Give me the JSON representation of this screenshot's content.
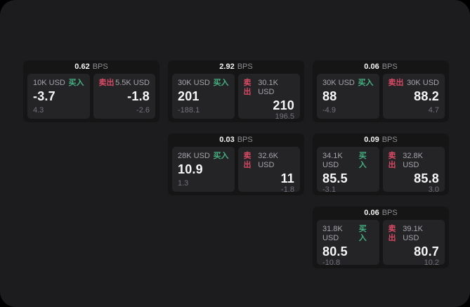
{
  "page": {
    "backdrop_color": "#000000",
    "background_color": "#1c1c1e"
  },
  "labels": {
    "bps_unit": "BPS",
    "buy": "买入",
    "sell": "卖出"
  },
  "colors": {
    "buy_green": "#45b081",
    "sell_red": "#d84a63",
    "card_background": "#151516",
    "panel_background": "#242427",
    "text_primary": "#f5f5f5",
    "text_secondary": "#a6a6aa",
    "text_muted": "#737378"
  },
  "cards": [
    {
      "bps": "0.62",
      "buy": {
        "amount": "10K USD",
        "price": "-3.7",
        "delta": "4.3"
      },
      "sell": {
        "amount": "5.5K USD",
        "price": "-1.8",
        "delta": "-2.6"
      }
    },
    {
      "bps": "2.92",
      "buy": {
        "amount": "30K USD",
        "price": "201",
        "delta": "-188.1"
      },
      "sell": {
        "amount": "30.1K USD",
        "price": "210",
        "delta": "196.5"
      }
    },
    {
      "bps": "0.06",
      "buy": {
        "amount": "30K USD",
        "price": "88",
        "delta": "-4.9"
      },
      "sell": {
        "amount": "30K USD",
        "price": "88.2",
        "delta": "4.7"
      }
    },
    {
      "bps": "0.03",
      "buy": {
        "amount": "28K USD",
        "price": "10.9",
        "delta": "1.3"
      },
      "sell": {
        "amount": "32.6K USD",
        "price": "11",
        "delta": "-1.8"
      }
    },
    {
      "bps": "0.09",
      "buy": {
        "amount": "34.1K USD",
        "price": "85.5",
        "delta": "-3.1"
      },
      "sell": {
        "amount": "32.8K USD",
        "price": "85.8",
        "delta": "3.0"
      }
    },
    {
      "bps": "0.06",
      "buy": {
        "amount": "31.8K USD",
        "price": "80.5",
        "delta": "-10.8"
      },
      "sell": {
        "amount": "39.1K USD",
        "price": "80.7",
        "delta": "10.2"
      }
    }
  ]
}
